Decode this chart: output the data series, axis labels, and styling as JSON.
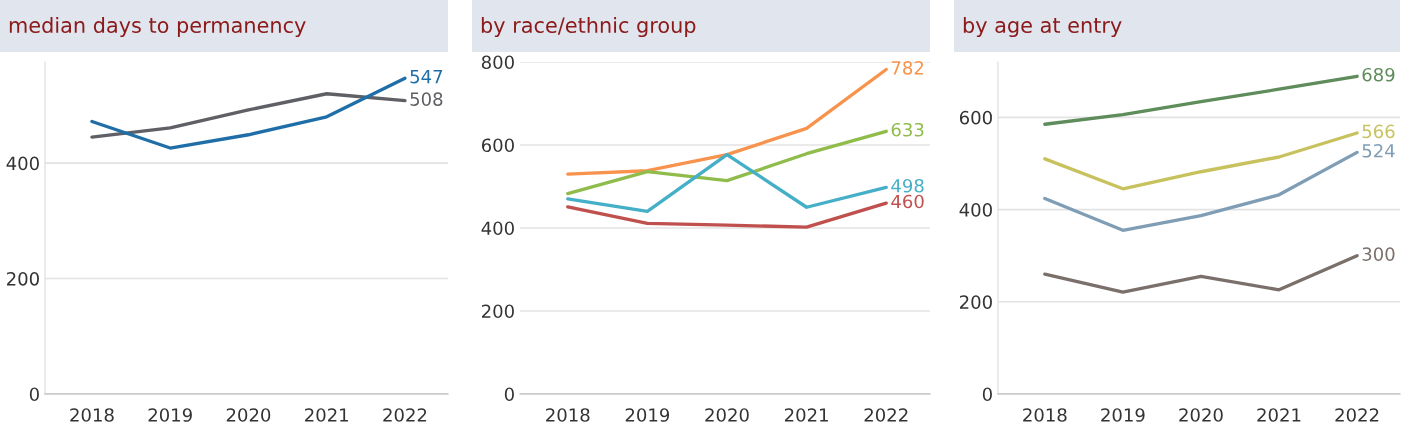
{
  "chart_data": [
    {
      "type": "line",
      "title": "median days to permanency",
      "categories": [
        "2018",
        "2019",
        "2020",
        "2021",
        "2022"
      ],
      "ylim": [
        0,
        575
      ],
      "yticks": [
        0,
        200,
        400
      ],
      "grid": "y",
      "series": [
        {
          "color": "#5f6066",
          "values": [
            445,
            461,
            492,
            520,
            508
          ],
          "value_labels": [
            null,
            null,
            null,
            null,
            "508"
          ]
        },
        {
          "color": "#1f6ea8",
          "values": [
            472,
            426,
            449,
            480,
            547
          ],
          "value_labels": [
            null,
            null,
            null,
            null,
            "547"
          ]
        }
      ]
    },
    {
      "type": "line",
      "title": "by race/ethnic group",
      "categories": [
        "2018",
        "2019",
        "2020",
        "2021",
        "2022"
      ],
      "ylim": [
        0,
        800
      ],
      "yticks": [
        0,
        200,
        400,
        600,
        800
      ],
      "grid": "y",
      "series": [
        {
          "color": "#f7934c",
          "values": [
            530,
            538,
            577,
            640,
            782
          ],
          "value_labels": [
            null,
            null,
            null,
            null,
            "782"
          ]
        },
        {
          "color": "#8fbc4a",
          "values": [
            483,
            536,
            514,
            579,
            633
          ],
          "value_labels": [
            null,
            null,
            null,
            null,
            "633"
          ]
        },
        {
          "color": "#45afc8",
          "values": [
            470,
            440,
            577,
            450,
            498
          ],
          "value_labels": [
            null,
            null,
            null,
            null,
            "498"
          ]
        },
        {
          "color": "#c0504d",
          "values": [
            451,
            411,
            407,
            402,
            460
          ],
          "value_labels": [
            null,
            null,
            null,
            null,
            "460"
          ]
        }
      ]
    },
    {
      "type": "line",
      "title": "by age at entry",
      "categories": [
        "2018",
        "2019",
        "2020",
        "2021",
        "2022"
      ],
      "ylim": [
        0,
        720
      ],
      "yticks": [
        0,
        200,
        400,
        600
      ],
      "grid": "y",
      "series": [
        {
          "color": "#5e8c5a",
          "values": [
            585,
            606,
            634,
            661,
            689
          ],
          "value_labels": [
            null,
            null,
            null,
            null,
            "689"
          ]
        },
        {
          "color": "#c8c25e",
          "values": [
            510,
            445,
            482,
            514,
            566
          ],
          "value_labels": [
            null,
            null,
            null,
            null,
            "566"
          ]
        },
        {
          "color": "#7f9db5",
          "values": [
            424,
            355,
            387,
            432,
            524
          ],
          "value_labels": [
            null,
            null,
            null,
            null,
            "524"
          ]
        },
        {
          "color": "#7a6f6a",
          "values": [
            260,
            221,
            255,
            226,
            300
          ],
          "value_labels": [
            null,
            null,
            null,
            null,
            "300"
          ]
        }
      ]
    }
  ]
}
